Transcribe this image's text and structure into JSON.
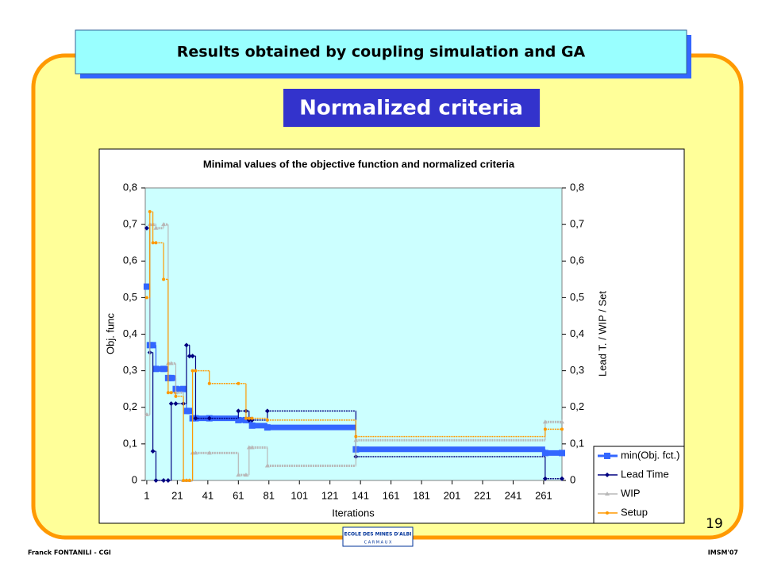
{
  "slide": {
    "header": "Results obtained by coupling simulation and GA",
    "subtitle": "Normalized criteria",
    "page_number": "19",
    "author": "Franck FONTANILI - CGI",
    "conference": "IMSM'07",
    "logo_text": "ECOLE DES MINES D'ALBI",
    "logo_subtext": "C A R M A U X"
  },
  "chart_data": {
    "type": "line",
    "title": "Minimal values of the objective function and normalized criteria",
    "x_label": "Iterations",
    "y_label": "Obj. func",
    "y2_label": "Lead T. / WIP / Set",
    "x": [
      1,
      3,
      5,
      7,
      12,
      15,
      17,
      20,
      25,
      27,
      29,
      31,
      33,
      42,
      61,
      66,
      68,
      70,
      80,
      138,
      262,
      273
    ],
    "series": [
      {
        "name": "min(Obj. fct.)",
        "color": "#3366ff",
        "values": [
          0.53,
          0.37,
          0.37,
          0.305,
          0.305,
          0.28,
          0.28,
          0.25,
          0.25,
          0.19,
          0.19,
          0.17,
          0.17,
          0.17,
          0.165,
          0.165,
          0.165,
          0.15,
          0.145,
          0.085,
          0.075,
          0.075
        ]
      },
      {
        "name": "Lead Time",
        "color": "#000080",
        "axis": "y2",
        "values": [
          0.69,
          0.35,
          0.08,
          0,
          0,
          0,
          0.21,
          0.21,
          0.21,
          0.37,
          0.34,
          0.34,
          0.17,
          0.17,
          0.19,
          0.19,
          0.165,
          0.165,
          0.19,
          0.065,
          0.005,
          0.005
        ]
      },
      {
        "name": "WIP",
        "color": "#b8b8b8",
        "axis": "y2",
        "values": [
          0.18,
          0.7,
          0.7,
          0.69,
          0.7,
          0.32,
          0.32,
          0.24,
          0,
          0,
          0,
          0.075,
          0.075,
          0.075,
          0.015,
          0.015,
          0.09,
          0.09,
          0.04,
          0.11,
          0.16,
          0.16
        ]
      },
      {
        "name": "Setup",
        "color": "#ff9900",
        "axis": "y2",
        "values": [
          0.5,
          0.735,
          0.65,
          0.65,
          0.55,
          0.24,
          0.24,
          0.23,
          0,
          0,
          0,
          0.3,
          0.3,
          0.265,
          0.265,
          0.17,
          0.17,
          0.17,
          0.165,
          0.12,
          0.14,
          0.14
        ]
      }
    ],
    "xlim": [
      0,
      273
    ],
    "xticks": [
      1,
      21,
      41,
      61,
      81,
      101,
      121,
      141,
      161,
      181,
      201,
      221,
      241,
      261
    ],
    "ylim": [
      0,
      0.8
    ],
    "yticks": [
      0,
      {
        "value": 0.1,
        "label": "0,1"
      },
      {
        "value": 0.2,
        "label": "0,2"
      },
      {
        "value": 0.3,
        "label": "0,3"
      },
      {
        "value": 0.4,
        "label": "0,4"
      },
      {
        "value": 0.5,
        "label": "0,5"
      },
      {
        "value": 0.6,
        "label": "0,6"
      },
      {
        "value": 0.7,
        "label": "0,7"
      },
      {
        "value": 0.8,
        "label": "0,8"
      }
    ],
    "y2lim": [
      0,
      0.8
    ],
    "y2ticks": [
      0,
      {
        "value": 0.1,
        "label": "0,1"
      },
      {
        "value": 0.2,
        "label": "0,2"
      },
      {
        "value": 0.3,
        "label": "0,3"
      },
      {
        "value": 0.4,
        "label": "0,4"
      },
      {
        "value": 0.5,
        "label": "0,5"
      },
      {
        "value": 0.6,
        "label": "0,6"
      },
      {
        "value": 0.7,
        "label": "0,7"
      },
      {
        "value": 0.8,
        "label": "0,8"
      }
    ],
    "plot_background": "#ccffff",
    "legend": "bottom-right"
  }
}
